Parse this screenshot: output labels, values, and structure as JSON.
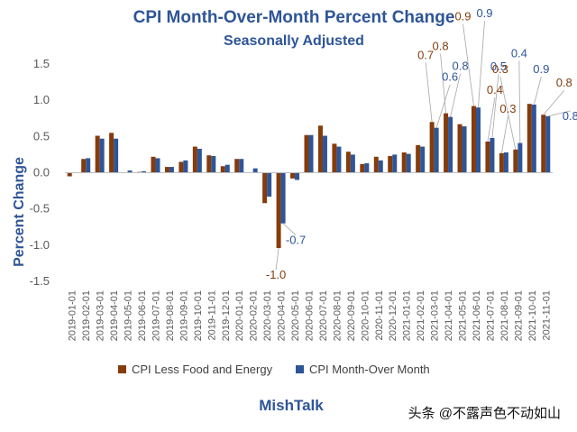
{
  "chart_data": {
    "type": "bar",
    "title": "CPI Month-Over-Month Percent Change",
    "subtitle": "Seasonally Adjusted",
    "ylabel": "Percent Change",
    "xlabel": "",
    "ylim": [
      -1.5,
      1.5
    ],
    "yticks": [
      "1.5",
      "1.0",
      "0.5",
      "0.0",
      "-0.5",
      "-1.0",
      "-1.5"
    ],
    "grid": false,
    "legend_position": "bottom",
    "categories": [
      "2019-01-01",
      "2019-02-01",
      "2019-03-01",
      "2019-04-01",
      "2019-05-01",
      "2019-06-01",
      "2019-07-01",
      "2019-08-01",
      "2019-09-01",
      "2019-10-01",
      "2019-11-01",
      "2019-12-01",
      "2020-01-01",
      "2020-02-01",
      "2020-03-01",
      "2020-04-01",
      "2020-05-01",
      "2020-06-01",
      "2020-07-01",
      "2020-08-01",
      "2020-09-01",
      "2020-10-01",
      "2020-11-01",
      "2020-12-01",
      "2021-01-01",
      "2021-02-01",
      "2021-03-01",
      "2021-04-01",
      "2021-05-01",
      "2021-06-01",
      "2021-07-01",
      "2021-08-01",
      "2021-09-01",
      "2021-10-01",
      "2021-11-01"
    ],
    "series": [
      {
        "name": "CPI Less Food and Energy",
        "color": "#843c0c",
        "values": [
          -0.05,
          0.19,
          0.51,
          0.55,
          0.0,
          0.01,
          0.22,
          0.08,
          0.15,
          0.36,
          0.24,
          0.09,
          0.19,
          0.0,
          -0.42,
          -1.04,
          -0.08,
          0.52,
          0.65,
          0.4,
          0.29,
          0.12,
          0.22,
          0.23,
          0.28,
          0.38,
          0.7,
          0.82,
          0.67,
          0.92,
          0.43,
          0.27,
          0.32,
          0.95,
          0.8
        ]
      },
      {
        "name": "CPI Month-Over Month",
        "color": "#2e5597",
        "values": [
          0.0,
          0.2,
          0.47,
          0.47,
          0.03,
          0.02,
          0.2,
          0.08,
          0.17,
          0.33,
          0.23,
          0.11,
          0.19,
          0.06,
          -0.33,
          -0.7,
          -0.1,
          0.52,
          0.51,
          0.36,
          0.25,
          0.13,
          0.17,
          0.25,
          0.26,
          0.36,
          0.62,
          0.77,
          0.64,
          0.9,
          0.48,
          0.28,
          0.41,
          0.94,
          0.78
        ]
      }
    ],
    "annotations": [
      {
        "text": "-1.0",
        "series": 0,
        "index": 15
      },
      {
        "text": "-0.7",
        "series": 1,
        "index": 15
      },
      {
        "text": "0.7",
        "series": 0,
        "index": 26
      },
      {
        "text": "0.6",
        "series": 1,
        "index": 26
      },
      {
        "text": "0.8",
        "series": 0,
        "index": 27
      },
      {
        "text": "0.8",
        "series": 1,
        "index": 27
      },
      {
        "text": "0.9",
        "series": 0,
        "index": 29
      },
      {
        "text": "0.9",
        "series": 1,
        "index": 29
      },
      {
        "text": "0.4",
        "series": 0,
        "index": 30
      },
      {
        "text": "0.5",
        "series": 1,
        "index": 30
      },
      {
        "text": "0.3",
        "series": 0,
        "index": 31
      },
      {
        "text": "0.3",
        "series": 0,
        "index": 32
      },
      {
        "text": "0.4",
        "series": 1,
        "index": 32
      },
      {
        "text": "0.9",
        "series": 1,
        "index": 33
      },
      {
        "text": "0.8",
        "series": 0,
        "index": 34
      },
      {
        "text": "0.8",
        "series": 1,
        "index": 34
      }
    ]
  },
  "source": "MishTalk",
  "watermark": "头条 @不露声色不动如山"
}
